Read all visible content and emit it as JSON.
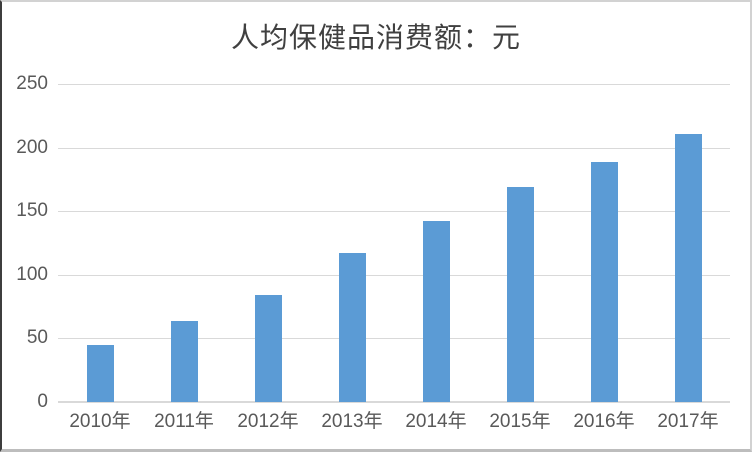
{
  "chart_data": {
    "type": "bar",
    "title": "人均保健品消费额：元",
    "categories": [
      "2010年",
      "2011年",
      "2012年",
      "2013年",
      "2014年",
      "2015年",
      "2016年",
      "2017年"
    ],
    "values": [
      45,
      64,
      84,
      117,
      142,
      169,
      189,
      211
    ],
    "xlabel": "",
    "ylabel": "",
    "ylim": [
      0,
      250
    ],
    "yticks": [
      0,
      50,
      100,
      150,
      200,
      250
    ],
    "grid": true,
    "legend": "none",
    "colors": {
      "bar": "#5B9BD5",
      "gridline": "#D9D9D9",
      "axis_line": "#D9D9D9",
      "tick_label": "#595959",
      "title": "#404040",
      "background": "#FFFFFF"
    }
  }
}
